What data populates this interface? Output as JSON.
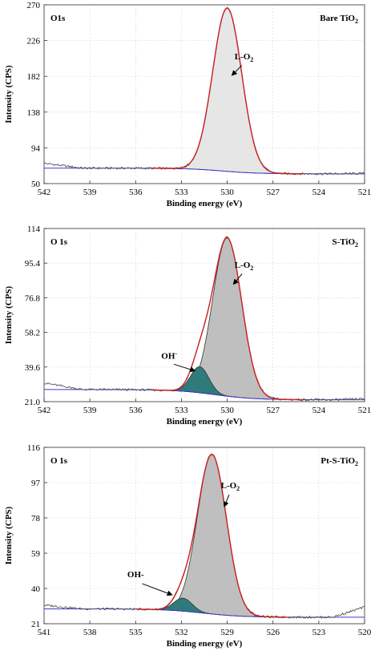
{
  "chart_data": [
    {
      "type": "line",
      "xlabel": "Binding energy (eV)",
      "ylabel": "Intensity (CPS)",
      "xlim": [
        542,
        521
      ],
      "ylim": [
        50,
        270
      ],
      "x_ticks": [
        "542",
        "539",
        "536",
        "533",
        "530",
        "527",
        "524",
        "521"
      ],
      "y_ticks": [
        "50",
        "94",
        "138",
        "182",
        "226",
        "270"
      ],
      "panel_label": "O1s",
      "sample_label": "Bare TiO",
      "sample_label_sub": "2",
      "background": {
        "left": 69,
        "right": 62,
        "center": 530.3,
        "width": 1.2
      },
      "raw_start": 75,
      "raw_end": 62.5,
      "peaks": [
        {
          "name": "L-O",
          "sub": "2",
          "center": 530.0,
          "height": 201,
          "sigma": 0.95,
          "fill": "#e6e6e6"
        }
      ],
      "annotations": [
        {
          "text": "L-O",
          "sub": "2",
          "label_at": [
            528.9,
            203
          ],
          "arrow_to": [
            529.7,
            183
          ]
        }
      ]
    },
    {
      "type": "line",
      "xlabel": "Binding energy (eV)",
      "ylabel": "Intensity (CPS)",
      "xlim": [
        542,
        521
      ],
      "ylim": [
        21.0,
        114
      ],
      "x_ticks": [
        "542",
        "539",
        "536",
        "533",
        "530",
        "527",
        "524",
        "521"
      ],
      "y_ticks": [
        "21.0",
        "39.6",
        "58.2",
        "76.8",
        "95.4",
        "114"
      ],
      "panel_label": "O 1s",
      "sample_label": "S-TiO",
      "sample_label_sub": "2",
      "background": {
        "left": 27.5,
        "right": 22,
        "center": 530.8,
        "width": 1.3
      },
      "raw_start": 31,
      "raw_end": 22.5,
      "peaks": [
        {
          "name": "L-O",
          "sub": "2",
          "center": 530.0,
          "height": 85,
          "sigma": 0.95,
          "fill": "#bfbfbf"
        },
        {
          "name": "OH-",
          "sub": "",
          "center": 531.8,
          "height": 14,
          "sigma": 0.6,
          "fill": "#2f7b7b"
        }
      ],
      "annotations": [
        {
          "text": "L-O",
          "sub": "2",
          "label_at": [
            528.9,
            93
          ],
          "arrow_to": [
            529.6,
            84
          ]
        },
        {
          "text": "OH",
          "sub": "-",
          "label_at": [
            533.8,
            44
          ],
          "arrow_to": [
            532.1,
            37.5
          ]
        }
      ]
    },
    {
      "type": "line",
      "xlabel": "Binding energy (eV)",
      "ylabel": "Intensity (CPS)",
      "xlim": [
        541,
        520
      ],
      "ylim": [
        21,
        116
      ],
      "x_ticks": [
        "541",
        "538",
        "535",
        "532",
        "529",
        "526",
        "523",
        "520"
      ],
      "y_ticks": [
        "21",
        "40",
        "59",
        "78",
        "97",
        "116"
      ],
      "panel_label": "O 1s",
      "sample_label": "Pt-S-TiO",
      "sample_label_sub": "2",
      "background": {
        "left": 29,
        "right": 24.5,
        "center": 530.6,
        "width": 1.3
      },
      "raw_start": 31,
      "raw_end": 30,
      "peaks": [
        {
          "name": "L-O",
          "sub": "2",
          "center": 530.0,
          "height": 86,
          "sigma": 0.95,
          "fill": "#bfbfbf"
        },
        {
          "name": "OH-",
          "sub": "",
          "center": 531.9,
          "height": 7,
          "sigma": 0.6,
          "fill": "#2f7b7b"
        }
      ],
      "annotations": [
        {
          "text": "L-O",
          "sub": "2",
          "label_at": [
            528.8,
            94
          ],
          "arrow_to": [
            529.2,
            84
          ]
        },
        {
          "text": "OH-",
          "sub": "",
          "label_at": [
            535.0,
            46
          ],
          "arrow_to": [
            532.6,
            36.5
          ]
        }
      ]
    }
  ]
}
